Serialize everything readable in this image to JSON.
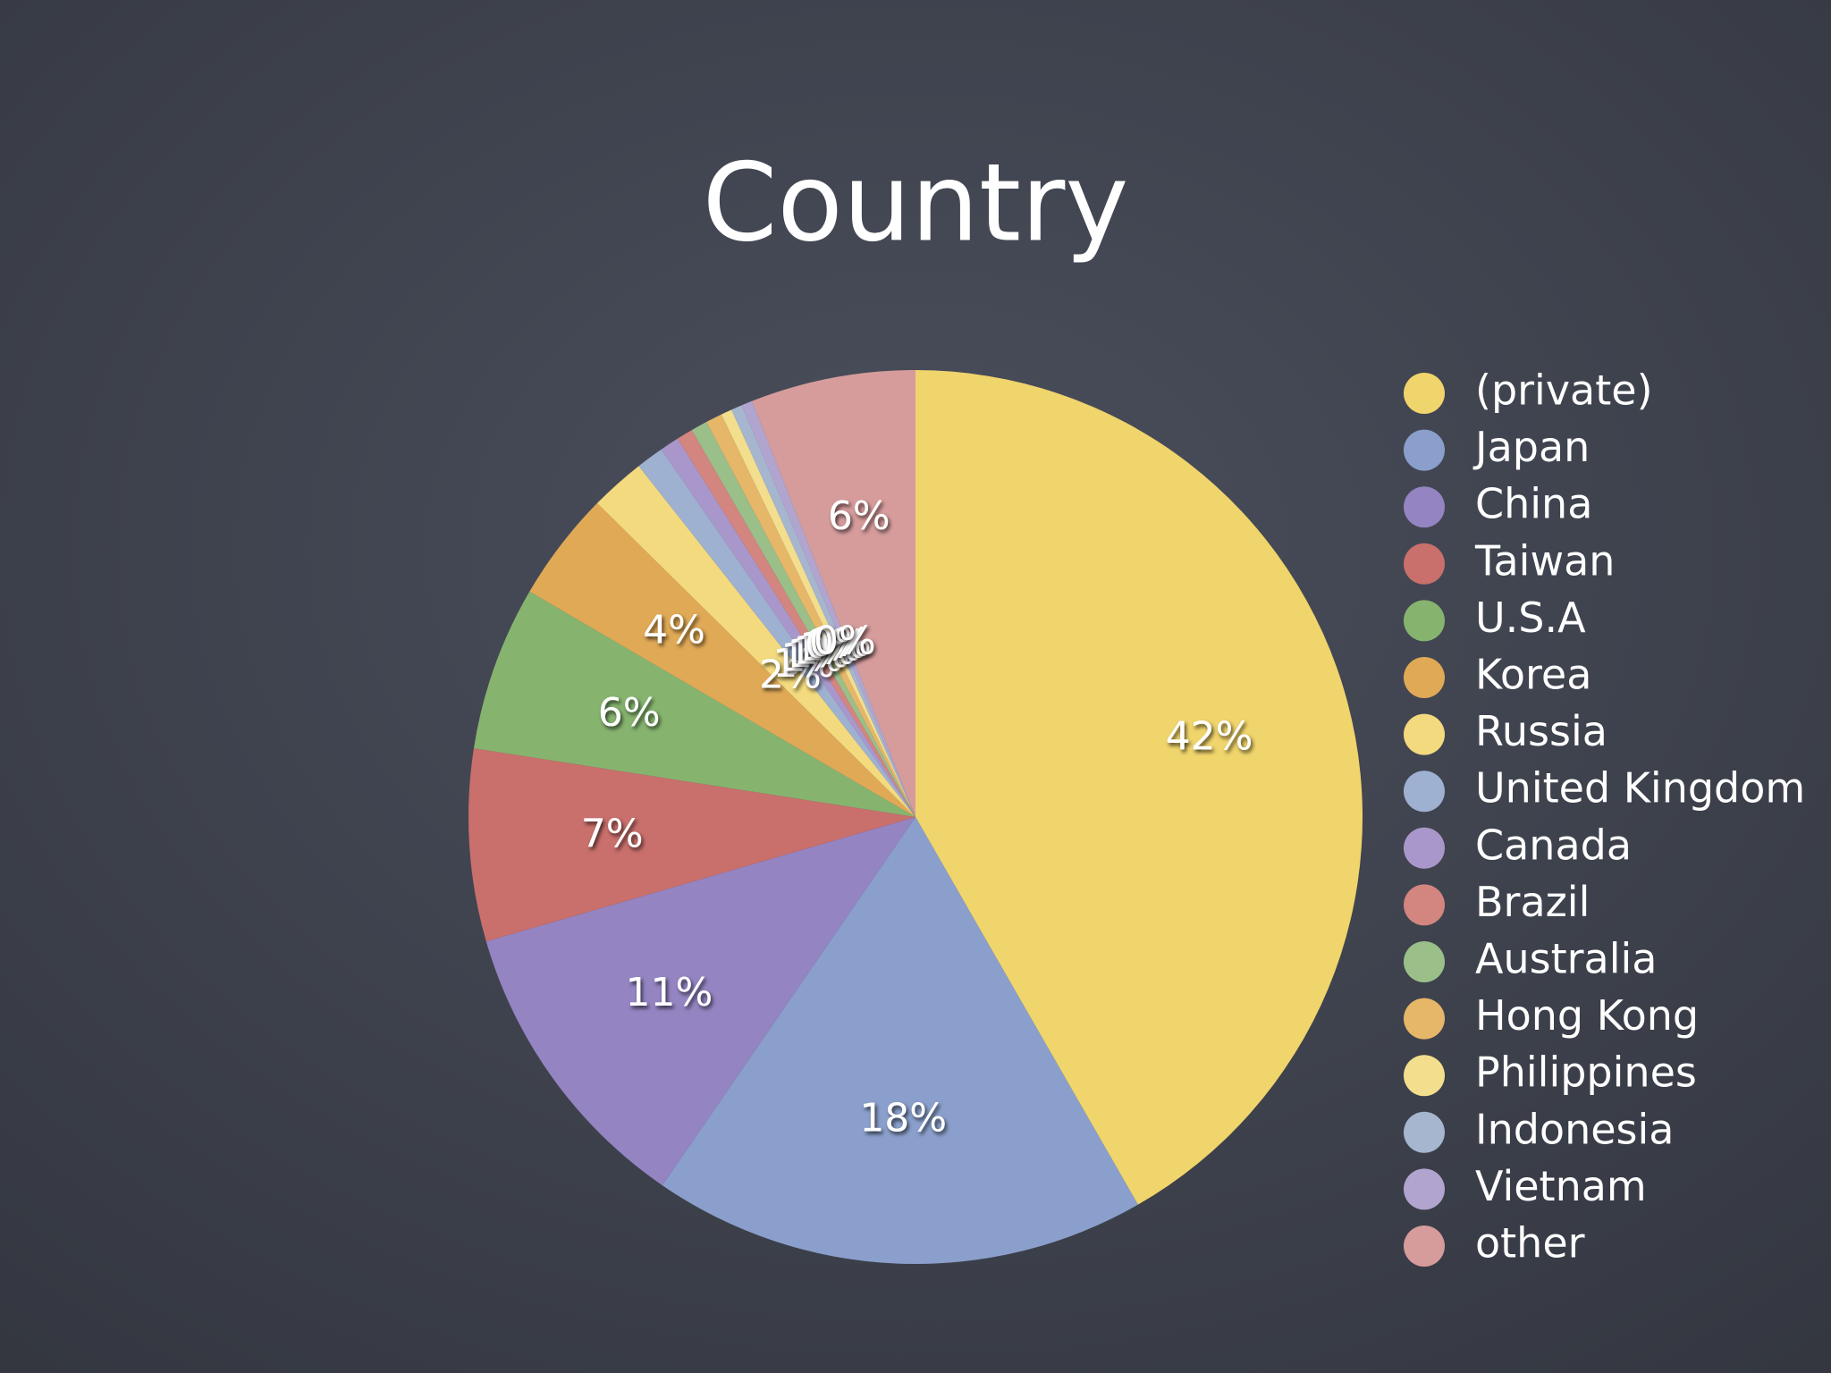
{
  "chart_data": {
    "type": "pie",
    "title": "Country",
    "categories": [
      "(private)",
      "Japan",
      "China",
      "Taiwan",
      "U.S.A",
      "Korea",
      "Russia",
      "United Kingdom",
      "Canada",
      "Brazil",
      "Australia",
      "Hong Kong",
      "Philippines",
      "Indonesia",
      "Vietnam",
      "other"
    ],
    "values": [
      42,
      18,
      11,
      7,
      6,
      4,
      2,
      1,
      0.7,
      0.6,
      0.6,
      0.6,
      0.4,
      0.4,
      0.4,
      6
    ],
    "value_labels": [
      "42%",
      "18%",
      "11%",
      "7%",
      "6%",
      "4%",
      "2%",
      "1%",
      "1%",
      "1%",
      "1%",
      "1%",
      "0%",
      "0%",
      "0%",
      "6%"
    ],
    "colors": [
      "#f0d46c",
      "#8a9fcb",
      "#9484c2",
      "#c96f6c",
      "#86b46f",
      "#e0a956",
      "#f3da7e",
      "#9fb1d1",
      "#a997cb",
      "#d3857f",
      "#9bbf89",
      "#e6b669",
      "#f3de8d",
      "#a6b6cf",
      "#b1a5cf",
      "#d69c9c"
    ],
    "legend": "right"
  }
}
